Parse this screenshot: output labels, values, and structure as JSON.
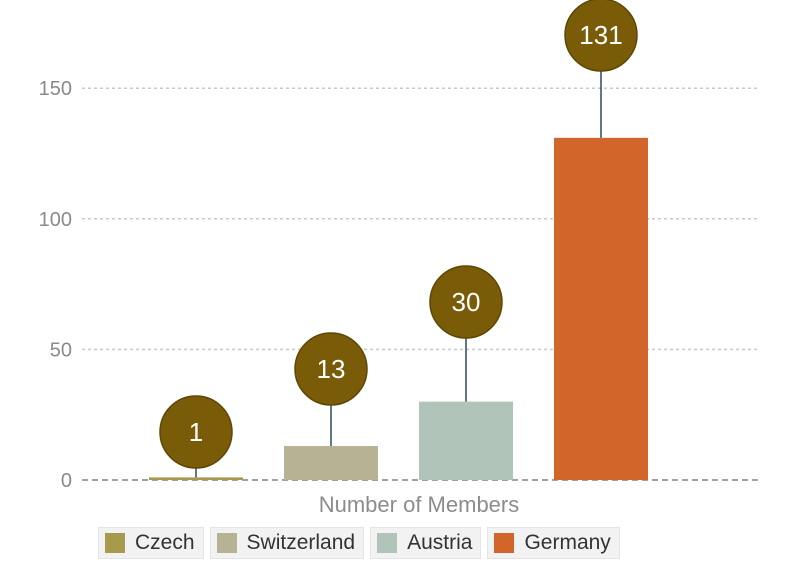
{
  "chart_data": {
    "type": "bar",
    "categories": [
      "Czech",
      "Switzerland",
      "Austria",
      "Germany"
    ],
    "values": [
      1,
      13,
      30,
      131
    ],
    "colors": [
      "#a89a4c",
      "#b8b294",
      "#b0c4b9",
      "#d2652a"
    ],
    "label_bubble_color": "#7a5c08",
    "xlabel": "Number of Members",
    "ylabel": "",
    "ylim": [
      0,
      175
    ],
    "yticks": [
      0,
      50,
      100,
      150
    ],
    "grid": true,
    "legend_position": "bottom"
  }
}
